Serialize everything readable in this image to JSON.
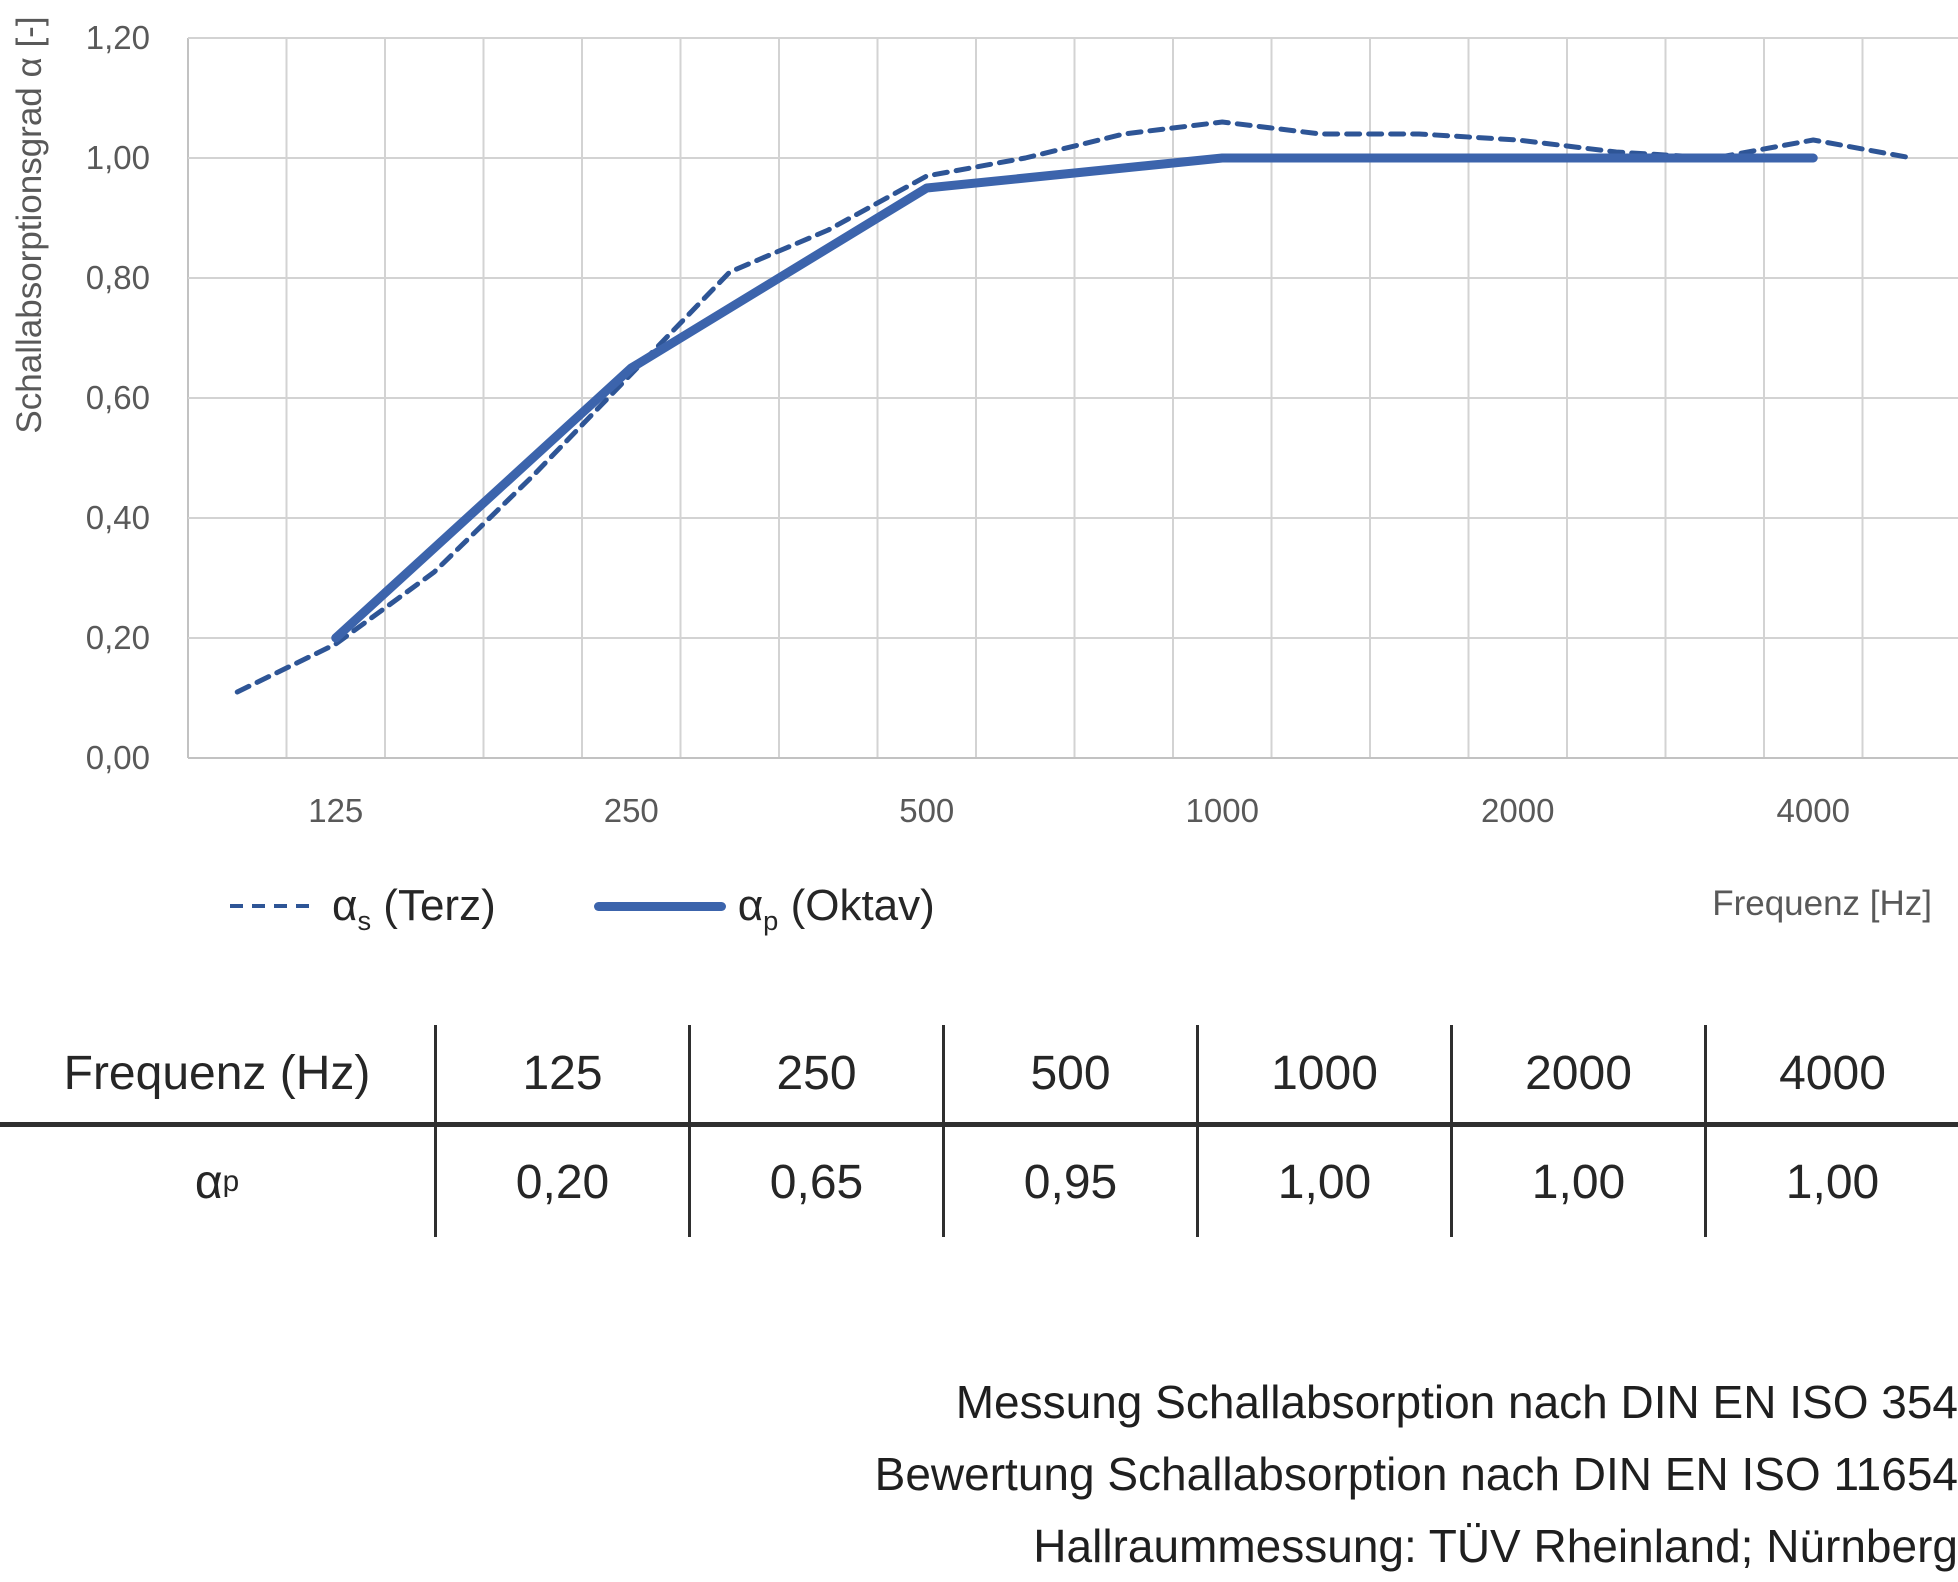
{
  "chart_data": {
    "type": "line",
    "title": "",
    "xlabel": "Frequenz [Hz]",
    "ylabel": "Schallabsorptionsgrad α [-]",
    "x_scale": "categorical third-octave bands (log frequency)",
    "categories": [
      "100",
      "125",
      "160",
      "200",
      "250",
      "315",
      "400",
      "500",
      "630",
      "800",
      "1000",
      "1250",
      "1600",
      "2000",
      "2500",
      "3150",
      "4000",
      "5000"
    ],
    "ylim": [
      0,
      1.2
    ],
    "grid": true,
    "legend_position": "below-left",
    "y_ticks": [
      {
        "value": 0.0,
        "label": "0,00"
      },
      {
        "value": 0.2,
        "label": "0,20"
      },
      {
        "value": 0.4,
        "label": "0,40"
      },
      {
        "value": 0.6,
        "label": "0,60"
      },
      {
        "value": 0.8,
        "label": "0,80"
      },
      {
        "value": 1.0,
        "label": "1,00"
      },
      {
        "value": 1.2,
        "label": "1,20"
      }
    ],
    "x_tick_labels": [
      {
        "index": 1,
        "label": "125"
      },
      {
        "index": 4,
        "label": "250"
      },
      {
        "index": 7,
        "label": "500"
      },
      {
        "index": 10,
        "label": "1000"
      },
      {
        "index": 13,
        "label": "2000"
      },
      {
        "index": 16,
        "label": "4000"
      }
    ],
    "series": [
      {
        "name": "αs (Terz)",
        "style": "dashed",
        "color": "#2e5596",
        "x": [
          "100",
          "125",
          "160",
          "200",
          "250",
          "315",
          "400",
          "500",
          "630",
          "800",
          "1000",
          "1250",
          "1600",
          "2000",
          "2500",
          "3150",
          "4000",
          "5000"
        ],
        "values": [
          0.11,
          0.19,
          0.31,
          0.47,
          0.64,
          0.81,
          0.88,
          0.97,
          1.0,
          1.04,
          1.06,
          1.04,
          1.04,
          1.03,
          1.01,
          1.0,
          1.03,
          1.0
        ]
      },
      {
        "name": "αp (Oktav)",
        "style": "solid",
        "color": "#3c64ac",
        "x": [
          "125",
          "250",
          "500",
          "1000",
          "2000",
          "4000"
        ],
        "values": [
          0.2,
          0.65,
          0.95,
          1.0,
          1.0,
          1.0
        ]
      }
    ]
  },
  "legend": {
    "items": [
      {
        "symbol": "α",
        "sub": "s",
        "rest": " (Terz)"
      },
      {
        "symbol": "α",
        "sub": "p",
        "rest": " (Oktav)"
      }
    ]
  },
  "table": {
    "header": [
      "Frequenz (Hz)",
      "125",
      "250",
      "500",
      "1000",
      "2000",
      "4000"
    ],
    "row_label": {
      "symbol": "α",
      "sub": "p"
    },
    "values": [
      "0,20",
      "0,65",
      "0,95",
      "1,00",
      "1,00",
      "1,00"
    ]
  },
  "footer": {
    "lines": [
      "Messung Schallabsorption nach DIN EN ISO 354",
      "Bewertung Schallabsorption nach DIN EN ISO 11654",
      "Hallraummessung: TÜV Rheinland; Nürnberg"
    ]
  },
  "colors": {
    "grid": "#d3d3d3",
    "axis_line": "#c2c2c2",
    "axis_text": "#595959",
    "text_dark": "#262626",
    "series_dashed": "#2e5596",
    "series_solid": "#3c64ac"
  }
}
